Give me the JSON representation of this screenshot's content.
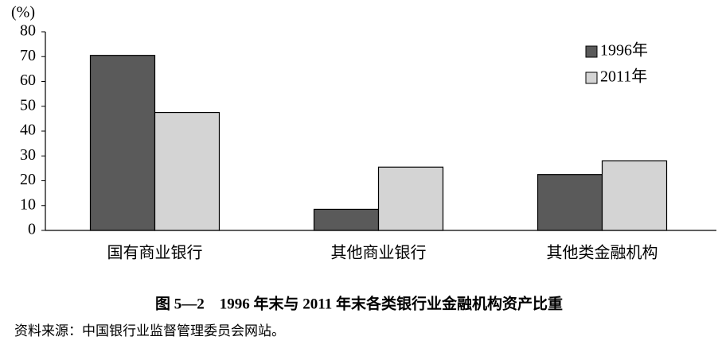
{
  "chart_data": {
    "type": "bar",
    "title": "图 5—2　1996 年末与 2011 年末各类银行业金融机构资产比重",
    "source": "资料来源：中国银行业监督管理委员会网站。",
    "y_label": "(%)",
    "categories": [
      "国有商业银行",
      "其他商业银行",
      "其他类金融机构"
    ],
    "series": [
      {
        "name": "1996年",
        "color": "#5a5a5a",
        "values": [
          70.5,
          8.5,
          22.5
        ]
      },
      {
        "name": "2011年",
        "color": "#d4d4d4",
        "values": [
          47.5,
          25.5,
          28
        ]
      }
    ],
    "ylim": [
      0,
      80
    ],
    "yticks": [
      0,
      10,
      20,
      30,
      40,
      50,
      60,
      70,
      80
    ],
    "grid": false,
    "legend": "upper right"
  }
}
